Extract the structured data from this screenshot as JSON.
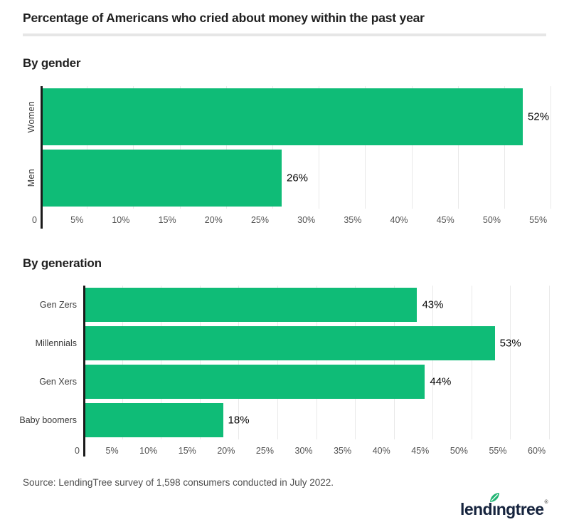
{
  "page": {
    "title": "Percentage of Americans who cried about money within the past year",
    "source": "Source: LendingTree survey of 1,598 consumers conducted in July 2022.",
    "logo": {
      "pre": "lend",
      "i_glyph": "ı",
      "post": "ngtree",
      "reg": "®",
      "full_text": "lendingtree"
    }
  },
  "colors": {
    "bar_green": "#0fbc77",
    "axis_dark": "#1a1a1a",
    "gridline_gray": "#e9e9e9",
    "divider_gray": "#e6e6e6",
    "heading_dark": "#1f1f1f",
    "tick_gray": "#525252",
    "value_black": "#050505",
    "category_gray": "#3a3a3a",
    "source_gray": "#4d4d4d",
    "logo_navy": "#15233d",
    "leaf_green": "#21b573"
  },
  "chart_data": [
    {
      "type": "bar",
      "orientation": "horizontal",
      "section_title": "By gender",
      "categories": [
        "Women",
        "Men"
      ],
      "values": [
        52,
        26
      ],
      "value_labels": [
        "52%",
        "26%"
      ],
      "xlim": [
        0,
        56.6
      ],
      "grid": true,
      "legend": "none",
      "ticks": [
        {
          "v": 0,
          "label": "0"
        },
        {
          "v": 5,
          "label": "5%"
        },
        {
          "v": 10,
          "label": "10%"
        },
        {
          "v": 15,
          "label": "15%"
        },
        {
          "v": 20,
          "label": "20%"
        },
        {
          "v": 25,
          "label": "25%"
        },
        {
          "v": 30,
          "label": "30%"
        },
        {
          "v": 35,
          "label": "35%"
        },
        {
          "v": 40,
          "label": "40%"
        },
        {
          "v": 45,
          "label": "45%"
        },
        {
          "v": 50,
          "label": "50%"
        },
        {
          "v": 55,
          "label": "55%"
        }
      ]
    },
    {
      "type": "bar",
      "orientation": "horizontal",
      "section_title": "By generation",
      "categories": [
        "Gen Zers",
        "Millennials",
        "Gen Xers",
        "Baby boomers"
      ],
      "values": [
        43,
        53,
        44,
        18
      ],
      "value_labels": [
        "43%",
        "53%",
        "44%",
        "18%"
      ],
      "xlim": [
        0,
        62.1
      ],
      "grid": true,
      "legend": "none",
      "ticks": [
        {
          "v": 0,
          "label": "0"
        },
        {
          "v": 5,
          "label": "5%"
        },
        {
          "v": 10,
          "label": "10%"
        },
        {
          "v": 15,
          "label": "15%"
        },
        {
          "v": 20,
          "label": "20%"
        },
        {
          "v": 25,
          "label": "25%"
        },
        {
          "v": 30,
          "label": "30%"
        },
        {
          "v": 35,
          "label": "35%"
        },
        {
          "v": 40,
          "label": "40%"
        },
        {
          "v": 45,
          "label": "45%"
        },
        {
          "v": 50,
          "label": "50%"
        },
        {
          "v": 55,
          "label": "55%"
        },
        {
          "v": 60,
          "label": "60%"
        }
      ]
    }
  ]
}
